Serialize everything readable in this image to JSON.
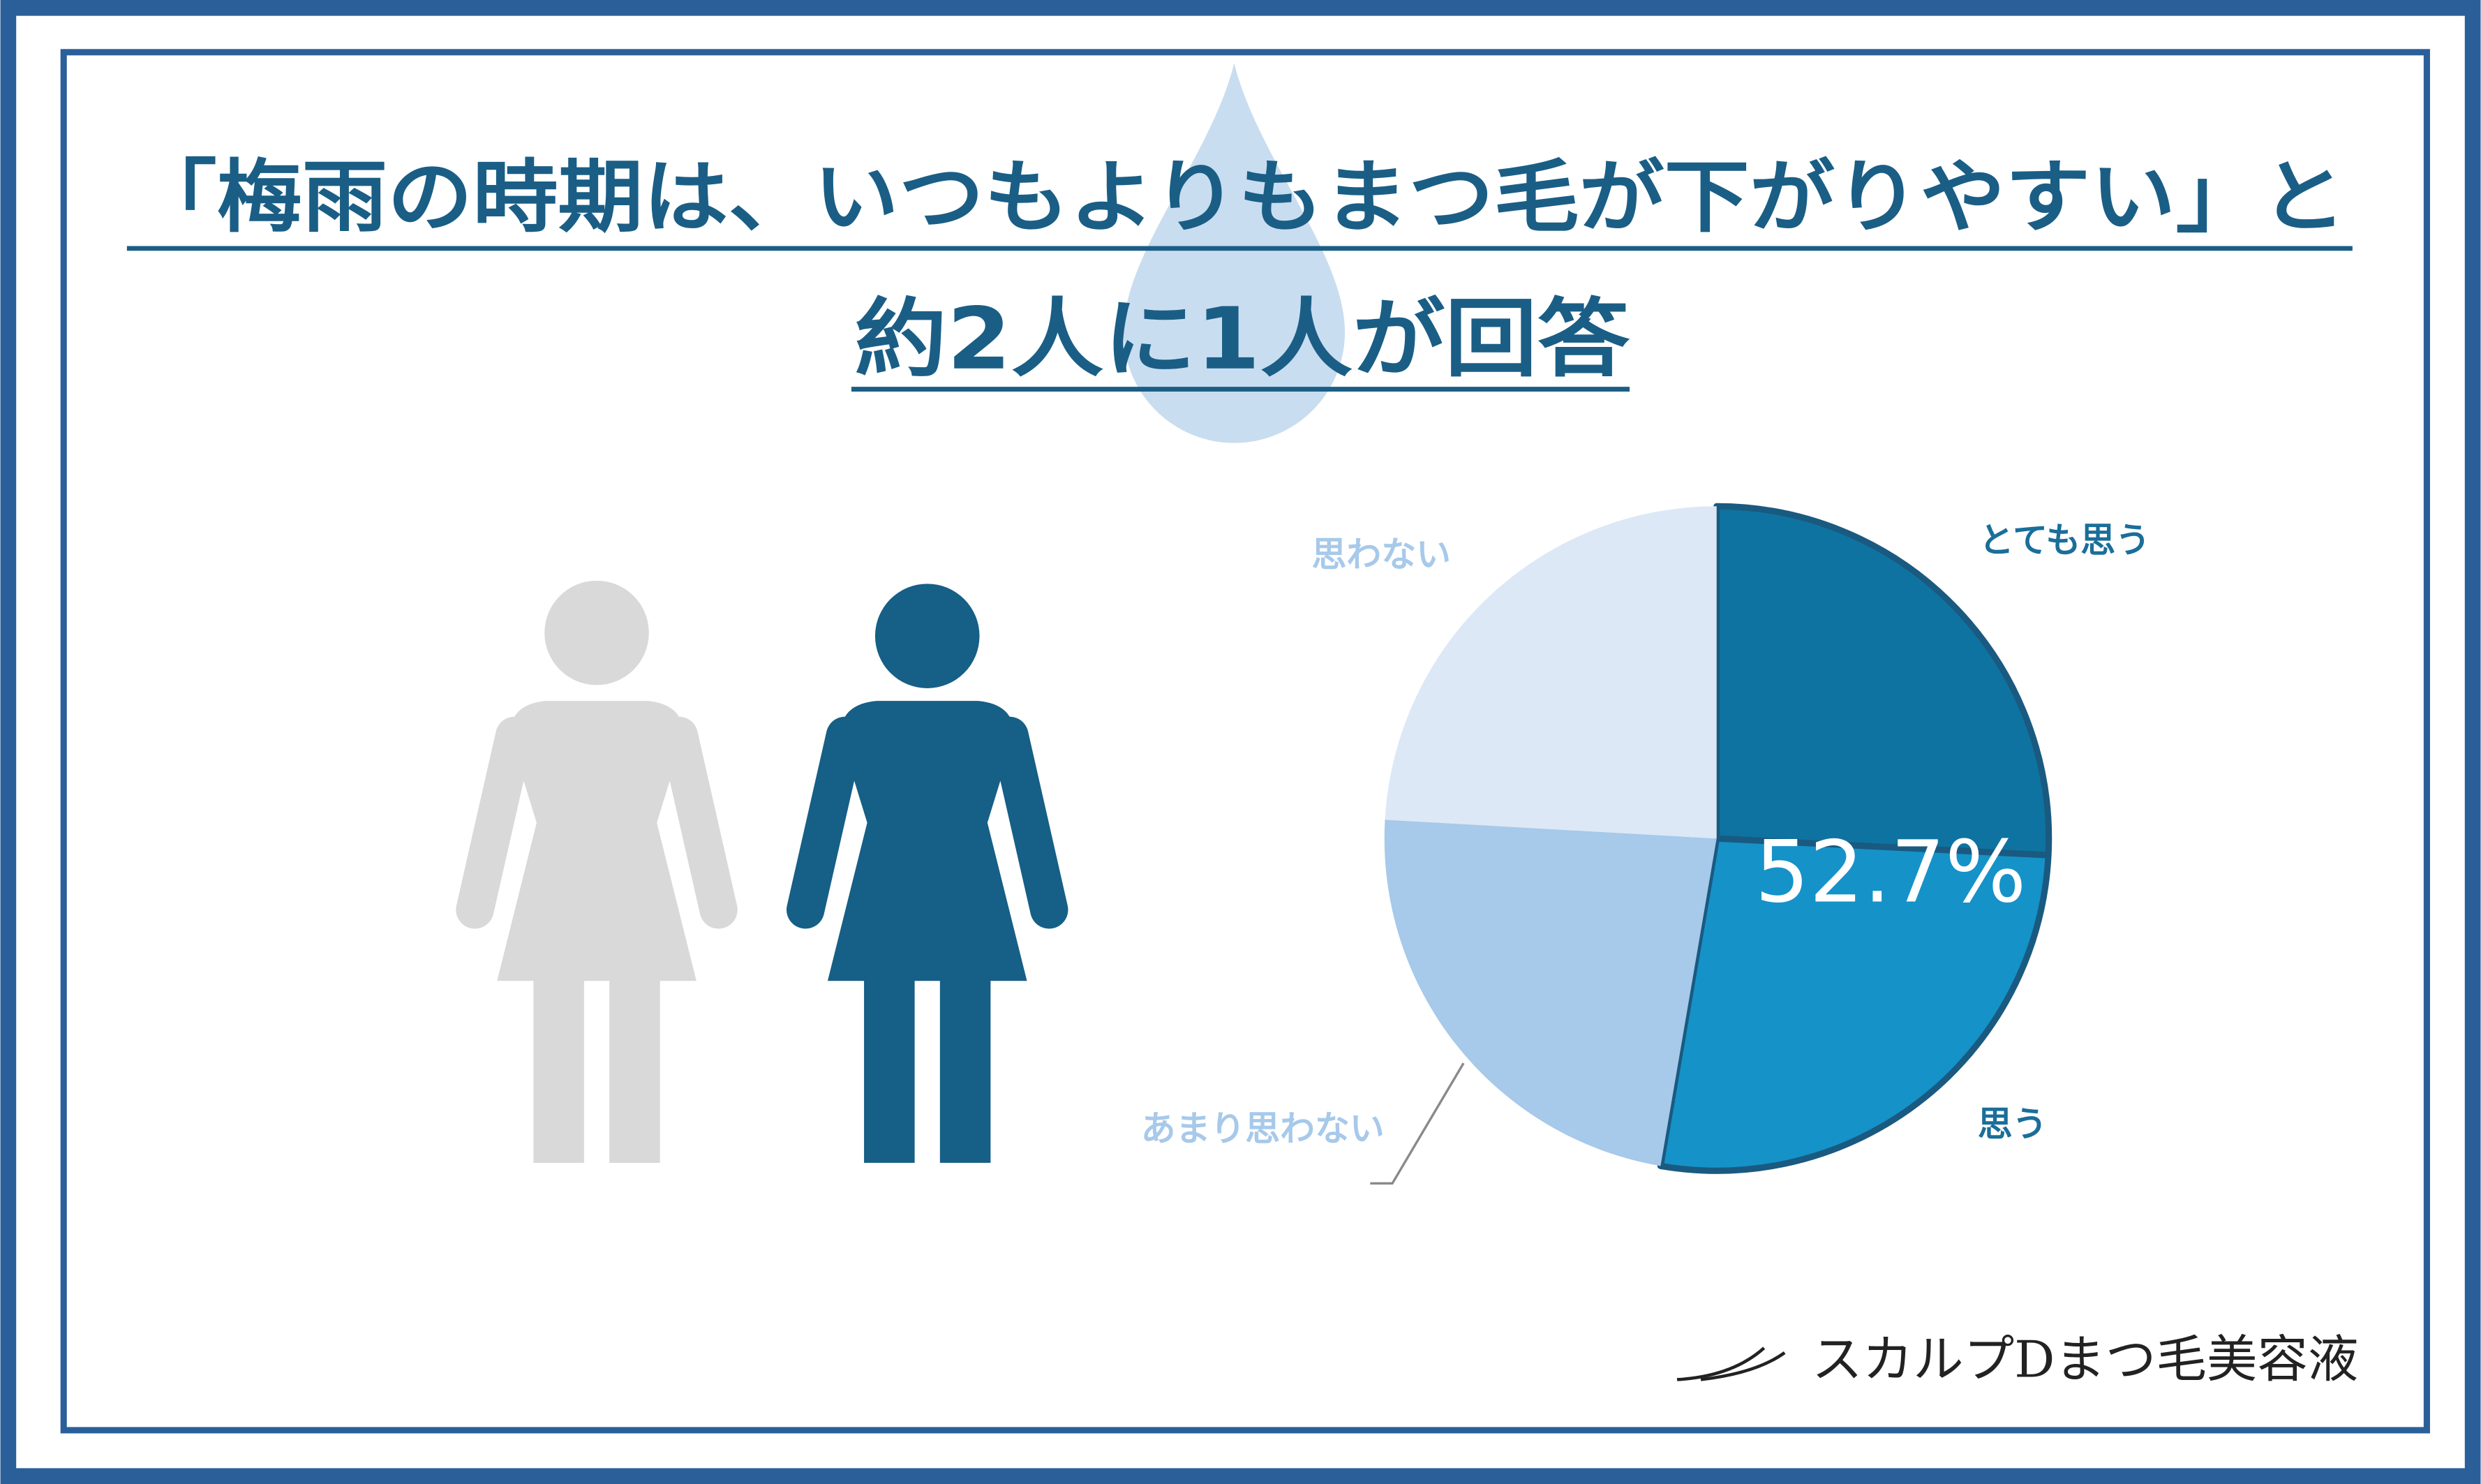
{
  "chart_data": {
    "type": "pie",
    "title": "「梅雨の時期は、いつもよりもまつ毛が下がりやすい」と",
    "subtitle": "約2人に1人が回答",
    "categories": [
      "とても思う",
      "思う",
      "あまり思わない",
      "思わない"
    ],
    "values": [
      25.8,
      26.9,
      23.2,
      24.1
    ],
    "colors": [
      "#0e73a0",
      "#1592c8",
      "#a7c9ea",
      "#dce8f5"
    ],
    "annotation": "52.7%"
  },
  "brand": "スカルプDまつ毛美容液"
}
